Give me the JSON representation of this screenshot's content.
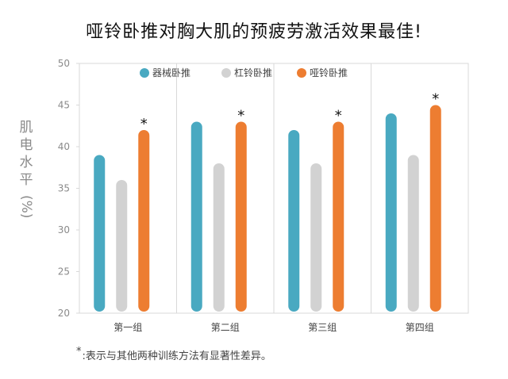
{
  "chart_data": {
    "type": "bar",
    "title": "哑铃卧推对胸大肌的预疲劳激活效果最佳!",
    "ylabel": "肌电水平(%)",
    "ylim": [
      20,
      50
    ],
    "yticks": [
      20,
      25,
      30,
      35,
      40,
      45,
      50
    ],
    "categories": [
      "第一组",
      "第二组",
      "第三组",
      "第四组"
    ],
    "series": [
      {
        "name": "器械卧推",
        "color": "#49a9c1",
        "values": [
          39,
          43,
          42,
          44
        ]
      },
      {
        "name": "杠铃卧推",
        "color": "#d2d2d2",
        "values": [
          36,
          38,
          38,
          39
        ]
      },
      {
        "name": "哑铃卧推",
        "color": "#ed7d31",
        "values": [
          42,
          43,
          43,
          45
        ]
      }
    ],
    "significance_marker": "*",
    "legend_position": "top",
    "grid": "vertical-separators"
  },
  "footnote": {
    "marker": "*",
    "text": ":表示与其他两种训练方法有显著性差异。"
  }
}
